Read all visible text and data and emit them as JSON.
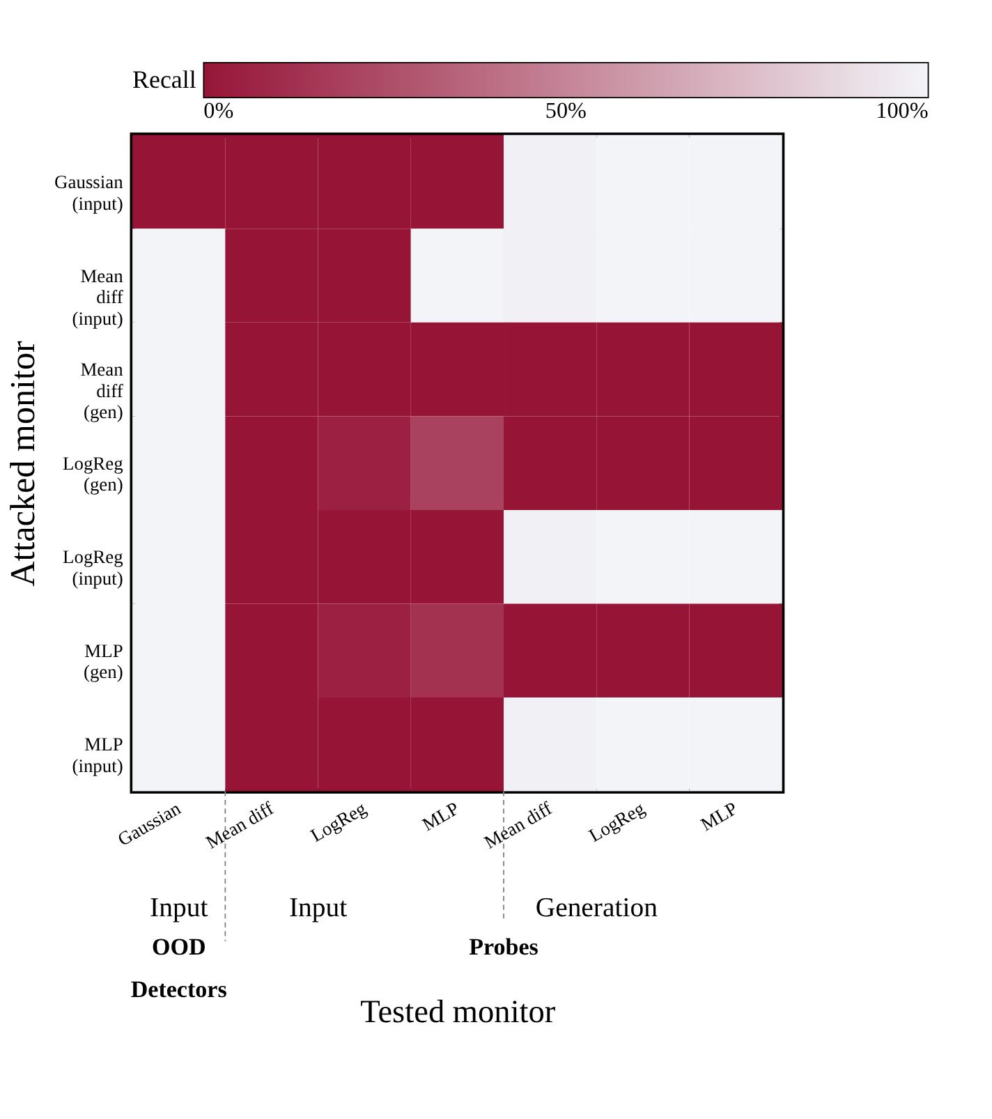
{
  "chart_data": {
    "type": "heatmap",
    "xlabel": "Tested monitor",
    "ylabel": "Attacked monitor",
    "clabel": "Recall",
    "categories": [
      "Gaussian",
      "Mean diff",
      "LogReg",
      "MLP",
      "Mean diff",
      "LogReg",
      "MLP"
    ],
    "y_categories": [
      "Gaussian\n(input)",
      "Mean\ndiff\n(input)",
      "Mean\ndiff\n(gen)",
      "LogReg\n(gen)",
      "LogReg\n(input)",
      "MLP\n(gen)",
      "MLP\n(input)"
    ],
    "cells": [
      [
        0,
        0,
        0,
        0,
        98,
        100,
        100
      ],
      [
        100,
        0,
        0,
        100,
        98,
        100,
        100
      ],
      [
        100,
        0,
        0,
        0,
        0,
        0,
        0
      ],
      [
        100,
        0,
        5,
        20,
        0,
        0,
        0
      ],
      [
        100,
        0,
        0,
        0,
        98,
        100,
        100
      ],
      [
        100,
        0,
        5,
        13,
        0,
        0,
        0
      ],
      [
        100,
        0,
        0,
        0,
        98,
        100,
        100
      ]
    ],
    "clim": [
      0,
      100
    ],
    "cticks": [
      {
        "value": 0,
        "label": "0%"
      },
      {
        "value": 50,
        "label": "50%"
      },
      {
        "value": 100,
        "label": "100%"
      }
    ],
    "annotations": [
      "Input",
      "Input",
      "Generation",
      "OOD\nDetectors",
      "Probes"
    ]
  }
}
